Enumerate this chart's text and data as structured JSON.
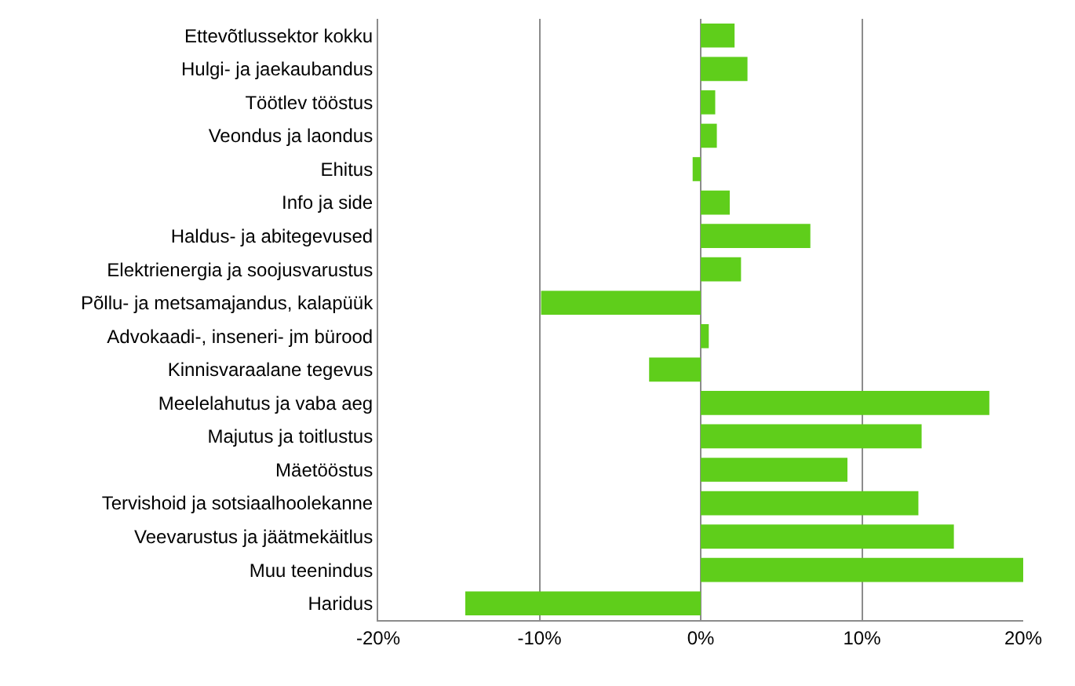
{
  "chart_data": {
    "type": "bar",
    "orientation": "horizontal",
    "categories": [
      "Ettevõtlussektor kokku",
      "Hulgi- ja jaekaubandus",
      "Töötlev tööstus",
      "Veondus ja laondus",
      "Ehitus",
      "Info ja side",
      "Haldus- ja abitegevused",
      "Elektrienergia ja soojusvarustus",
      "Põllu- ja metsamajandus, kalapüük",
      "Advokaadi-, inseneri- jm bürood",
      "Kinnisvaraalane tegevus",
      "Meelelahutus ja vaba aeg",
      "Majutus ja toitlustus",
      "Mäetööstus",
      "Tervishoid ja sotsiaalhoolekanne",
      "Veevarustus ja jäätmekäitlus",
      "Muu teenindus",
      "Haridus"
    ],
    "values": [
      2.1,
      2.9,
      0.9,
      1.0,
      -0.5,
      1.8,
      6.8,
      2.5,
      -9.9,
      0.5,
      -3.2,
      17.9,
      13.7,
      9.1,
      13.5,
      15.7,
      20.0,
      -14.6
    ],
    "color": "#5fce1b",
    "xlim": [
      -20,
      20
    ],
    "xticks": [
      {
        "value": -20,
        "label": "-20%"
      },
      {
        "value": -10,
        "label": "-10%"
      },
      {
        "value": 0,
        "label": "0%"
      },
      {
        "value": 10,
        "label": "10%"
      },
      {
        "value": 20,
        "label": "20%"
      }
    ],
    "grid": "x",
    "legend": false
  }
}
